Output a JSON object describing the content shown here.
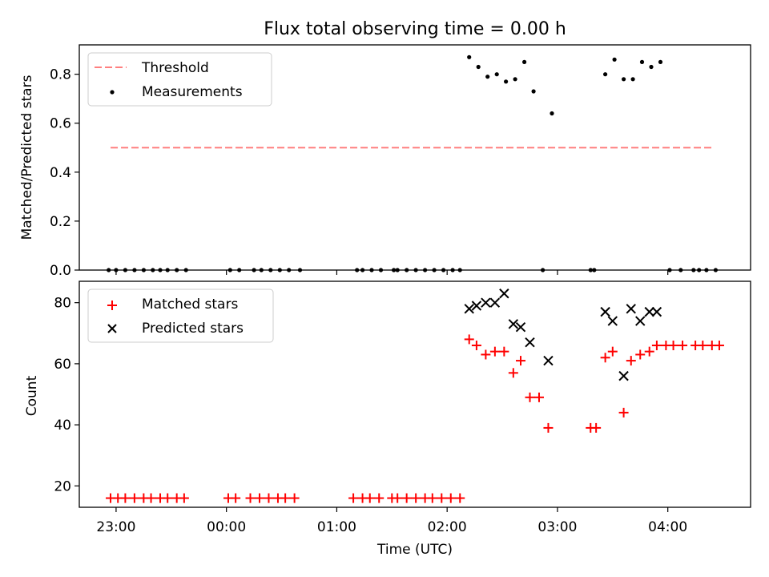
{
  "colors": {
    "threshold": "#ff7f7f",
    "matched": "#ff0000",
    "predicted": "#000000",
    "measurements": "#000000"
  },
  "chart_data": [
    {
      "type": "scatter",
      "title": "Flux total observing time = 0.00 h",
      "xlabel": "",
      "ylabel": "Matched/Predicted stars",
      "xlim": [
        "22:40",
        "04:45"
      ],
      "ylim": [
        0,
        0.92
      ],
      "yticks": [
        "0.0",
        "0.2",
        "0.4",
        "0.6",
        "0.8"
      ],
      "yticks_values": [
        0,
        0.2,
        0.4,
        0.6,
        0.8
      ],
      "xtick_labels_shown": false,
      "legend": {
        "position": "top-left",
        "labels": [
          "Threshold",
          "Measurements"
        ]
      },
      "threshold": {
        "name": "Threshold",
        "value": 0.5,
        "x_start": "22:57",
        "x_end": "04:25",
        "style": "dashed"
      },
      "series": [
        {
          "name": "Measurements",
          "x": [
            "22:56",
            "23:00",
            "23:05",
            "23:10",
            "23:15",
            "23:20",
            "23:24",
            "23:28",
            "23:33",
            "23:38",
            "00:02",
            "00:07",
            "00:15",
            "00:19",
            "00:24",
            "00:29",
            "00:34",
            "00:40",
            "01:11",
            "01:14",
            "01:19",
            "01:24",
            "01:31",
            "01:33",
            "01:38",
            "01:43",
            "01:48",
            "01:53",
            "01:58",
            "02:03",
            "02:07",
            "02:12",
            "02:17",
            "02:22",
            "02:27",
            "02:32",
            "02:37",
            "02:42",
            "02:47",
            "02:52",
            "02:57",
            "03:18",
            "03:20",
            "03:26",
            "03:31",
            "03:36",
            "03:41",
            "03:46",
            "03:51",
            "03:56",
            "04:01",
            "04:07",
            "04:14",
            "04:17",
            "04:21",
            "04:26"
          ],
          "y": [
            0,
            0,
            0,
            0,
            0,
            0,
            0,
            0,
            0,
            0,
            0,
            0,
            0,
            0,
            0,
            0,
            0,
            0,
            0,
            0,
            0,
            0,
            0,
            0,
            0,
            0,
            0,
            0,
            0,
            0,
            0,
            0.87,
            0.83,
            0.79,
            0.8,
            0.77,
            0.78,
            0.85,
            0.73,
            0,
            0.64,
            0,
            0,
            0.8,
            0.86,
            0.78,
            0.78,
            0.85,
            0.83,
            0.85,
            0,
            0,
            0,
            0,
            0,
            0
          ]
        }
      ]
    },
    {
      "type": "scatter",
      "title": "",
      "xlabel": "Time (UTC)",
      "ylabel": "Count",
      "xlim": [
        "22:40",
        "04:45"
      ],
      "ylim": [
        13,
        87
      ],
      "yticks": [
        "20",
        "40",
        "60",
        "80"
      ],
      "yticks_values": [
        20,
        40,
        60,
        80
      ],
      "xticks": [
        "23:00",
        "00:00",
        "01:00",
        "02:00",
        "03:00",
        "04:00"
      ],
      "legend": {
        "position": "top-left",
        "labels": [
          "Matched stars",
          "Predicted stars"
        ]
      },
      "series": [
        {
          "name": "Matched stars",
          "marker": "plus",
          "x": [
            "22:57",
            "23:01",
            "23:05",
            "23:10",
            "23:15",
            "23:19",
            "23:24",
            "23:28",
            "23:33",
            "23:37",
            "00:01",
            "00:05",
            "00:13",
            "00:18",
            "00:23",
            "00:28",
            "00:32",
            "00:37",
            "01:09",
            "01:14",
            "01:18",
            "01:23",
            "01:30",
            "01:33",
            "01:38",
            "01:43",
            "01:48",
            "01:52",
            "01:57",
            "02:02",
            "02:07",
            "02:12",
            "02:16",
            "02:21",
            "02:26",
            "02:31",
            "02:36",
            "02:40",
            "02:45",
            "02:50",
            "02:55",
            "03:18",
            "03:21",
            "03:26",
            "03:30",
            "03:36",
            "03:40",
            "03:45",
            "03:50",
            "03:54",
            "03:59",
            "04:03",
            "04:08",
            "04:15",
            "04:19",
            "04:24",
            "04:28"
          ],
          "y": [
            16,
            16,
            16,
            16,
            16,
            16,
            16,
            16,
            16,
            16,
            16,
            16,
            16,
            16,
            16,
            16,
            16,
            16,
            16,
            16,
            16,
            16,
            16,
            16,
            16,
            16,
            16,
            16,
            16,
            16,
            16,
            68,
            66,
            63,
            64,
            64,
            57,
            61,
            49,
            49,
            39,
            39,
            39,
            62,
            64,
            44,
            61,
            63,
            64,
            66,
            66,
            66,
            66,
            66,
            66,
            66,
            66
          ]
        },
        {
          "name": "Predicted stars",
          "marker": "x",
          "x": [
            "02:12",
            "02:16",
            "02:21",
            "02:26",
            "02:31",
            "02:36",
            "02:40",
            "02:45",
            "02:55",
            "03:26",
            "03:30",
            "03:36",
            "03:40",
            "03:45",
            "03:50",
            "03:54"
          ],
          "y": [
            78,
            79,
            80,
            80,
            83,
            73,
            72,
            67,
            61,
            77,
            74,
            56,
            78,
            74,
            77,
            77
          ]
        }
      ]
    }
  ]
}
